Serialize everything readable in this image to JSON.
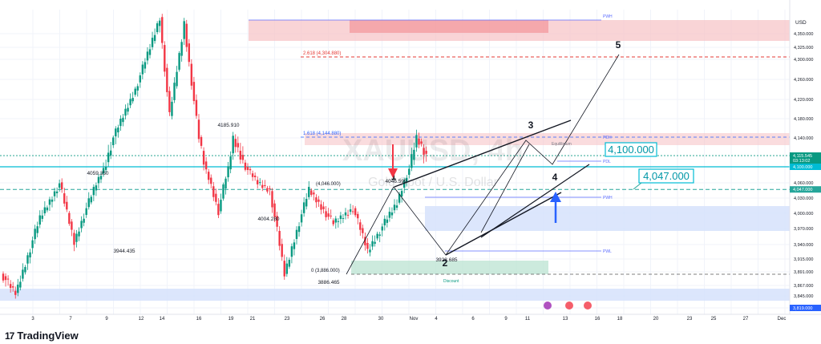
{
  "chart_data": {
    "type": "candlestick",
    "title": "XAUUSD, 4h",
    "subtitle": "Gold Spot / U.S. Dollar",
    "currency": "USD",
    "y_ticks": [
      "4,350.000",
      "4,325.000",
      "4,300.000",
      "4,260.000",
      "4,220.000",
      "4,180.000",
      "4,140.000",
      "4,100.000",
      "4,060.000",
      "4,030.000",
      "4,000.000",
      "3,970.000",
      "3,940.000",
      "3,915.000",
      "3,891.000",
      "3,867.000",
      "3,845.000",
      "3,819.000"
    ],
    "x_ticks": [
      "3",
      "7",
      "9",
      "12",
      "14",
      "16",
      "19",
      "21",
      "23",
      "26",
      "28",
      "30",
      "Nov",
      "4",
      "6",
      "9",
      "11",
      "13",
      "16",
      "18",
      "20",
      "23",
      "25",
      "27",
      "Dec"
    ],
    "price_tags": [
      {
        "label": "4,115.545",
        "sub": "03:13:02",
        "price": 4115.5,
        "color": "#089981"
      },
      {
        "label": "4,100.000",
        "price": 4100,
        "color": "#00bcd4"
      },
      {
        "label": "4,047.000",
        "price": 4047,
        "color": "#26a69a"
      },
      {
        "label": "3,819.000",
        "price": 3819,
        "color": "#2962ff"
      }
    ],
    "callouts": [
      {
        "label": "4,100.000",
        "price": 4100
      },
      {
        "label": "4,047.000",
        "price": 4047
      }
    ],
    "wave_labels": [
      "1",
      "2",
      "3",
      "4",
      "5"
    ],
    "annotations": {
      "fib_2618": "2.618 (4,304.880)",
      "fib_1618": "1.618 (4,144.880)",
      "fib_0": "0 (3,886.000)",
      "fib_mid": "(4,046.000)",
      "discount": "Discount",
      "equilibrium": "Equilibrium",
      "pwh_top": "PWH",
      "pdl": "PDL",
      "pdh": "PDH",
      "pwh_mid": "PWH",
      "pwl": "PWL"
    },
    "swing_labels": [
      {
        "text": "4185.910"
      },
      {
        "text": "4059.350"
      },
      {
        "text": "3944.435"
      },
      {
        "text": "4004.280"
      },
      {
        "text": "4046.599"
      },
      {
        "text": "3928.685"
      },
      {
        "text": "3886.465"
      }
    ],
    "watermark": "XAUUSD, 4h",
    "watermark_sub": "Gold Spot / U.S. Dollar"
  },
  "footer": {
    "brand_mark": "17",
    "brand": "TradingView"
  }
}
